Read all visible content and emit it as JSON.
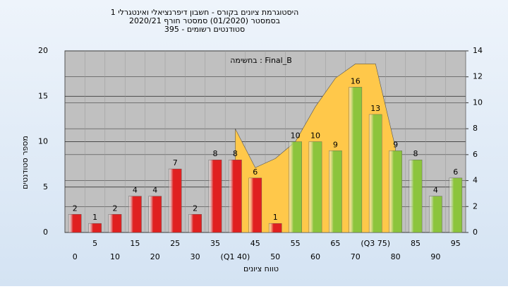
{
  "chart_data": {
    "type": "bar",
    "title": [
      "היסטוגרמת ציונים בקורס - חשבון דיפרנציאלי ואינטגרלי 1",
      "בסמסטר (01/2020) סמסטר חורף 2020/21",
      "סטודנטים רשומים - 395"
    ],
    "annotation": "בחשימה : Final_B",
    "ylabel": "מספר סטודנטים",
    "xlabel": "טווח ציונים",
    "categories": [
      "0",
      "5",
      "10",
      "15",
      "20",
      "25",
      "30",
      "35",
      "(Q1 40)",
      "45",
      "50",
      "55",
      "60",
      "65",
      "70",
      "(Q3 75)",
      "80",
      "85",
      "90",
      "95"
    ],
    "values": [
      2,
      1,
      2,
      4,
      4,
      7,
      2,
      8,
      8,
      6,
      1,
      10,
      10,
      9,
      16,
      13,
      9,
      8,
      4,
      6
    ],
    "colors": [
      "#e02020",
      "#e02020",
      "#e02020",
      "#e02020",
      "#e02020",
      "#e02020",
      "#e02020",
      "#e02020",
      "#e02020",
      "#e02020",
      "#e02020",
      "#8cc43c",
      "#8cc43c",
      "#8cc43c",
      "#8cc43c",
      "#8cc43c",
      "#8cc43c",
      "#8cc43c",
      "#8cc43c",
      "#8cc43c"
    ],
    "ylim": [
      0,
      20
    ],
    "yticks": [
      0,
      5,
      10,
      15,
      20
    ],
    "y2lim": [
      0,
      14
    ],
    "y2ticks": [
      0,
      2,
      4,
      6,
      8,
      10,
      12,
      14
    ],
    "area": {
      "axis": "y2",
      "color": "#ffc84a",
      "values": [
        null,
        null,
        null,
        null,
        null,
        null,
        null,
        null,
        8,
        5,
        5.7,
        7,
        9.7,
        11.9,
        13,
        13,
        6.5,
        null,
        null,
        null
      ]
    },
    "grid": true
  }
}
